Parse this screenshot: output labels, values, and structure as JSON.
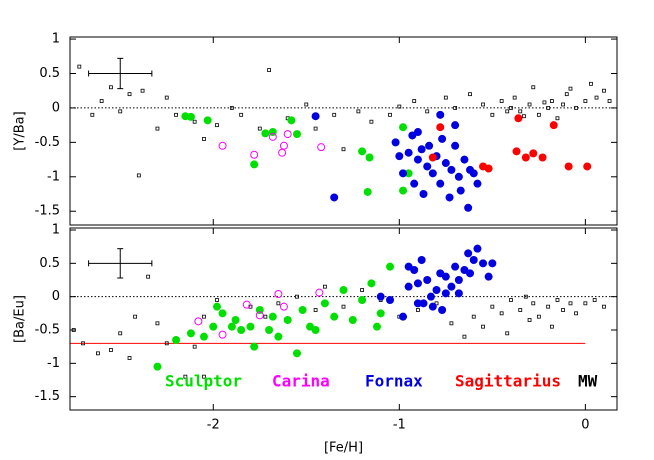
{
  "chart_data": [
    {
      "type": "scatter",
      "ylabel": "[Y/Ba]",
      "xlim": [
        -2.77,
        0.17
      ],
      "ylim": [
        -1.7,
        1.03
      ],
      "xticks": [
        -2,
        -1,
        0
      ],
      "yticks": [
        -1.5,
        -1,
        -0.5,
        0,
        0.5,
        1
      ],
      "reference_lines": [
        {
          "y": 0,
          "color": "#000000",
          "style": "dotted"
        }
      ],
      "error_bar": {
        "x": -2.5,
        "y": 0.5,
        "xerr": 0.17,
        "yerr": 0.22
      },
      "series": [
        {
          "color": "#000000",
          "marker": "square",
          "x": [
            -2.72,
            -2.6,
            -2.55,
            -2.5,
            -2.45,
            -2.38,
            -2.3,
            -2.25,
            -2.2,
            -2.1,
            -2.05,
            -1.98,
            -1.9,
            -1.85,
            -1.75,
            -1.7,
            -1.6,
            -1.5,
            -1.45,
            -1.35,
            -1.3,
            -1.22,
            -1.15,
            -1.05,
            -1.0,
            -0.92,
            -0.85,
            -0.75,
            -0.7,
            -0.62,
            -0.55,
            -0.5,
            -0.45,
            -0.4,
            -0.38,
            -0.35,
            -0.3,
            -0.28,
            -0.25,
            -0.2,
            -0.18,
            -0.15,
            -0.12,
            -0.1,
            -0.05,
            0.0,
            0.03,
            0.06,
            0.1,
            0.13,
            -2.65,
            -2.4,
            -0.42,
            -0.33,
            -0.22,
            -0.08
          ],
          "values": [
            0.6,
            0.1,
            0.3,
            -0.05,
            0.2,
            0.25,
            -0.3,
            0.15,
            -0.1,
            -0.2,
            -0.45,
            -0.25,
            0.0,
            -0.1,
            -0.3,
            0.55,
            -0.15,
            0.05,
            -0.3,
            -0.1,
            -0.6,
            -0.05,
            -0.2,
            -0.1,
            0.02,
            0.1,
            -0.05,
            0.15,
            0.0,
            0.2,
            0.05,
            -0.1,
            0.1,
            0.0,
            0.15,
            -0.05,
            0.05,
            0.3,
            -0.1,
            0.0,
            0.1,
            -0.15,
            0.05,
            0.2,
            0.0,
            0.1,
            0.35,
            0.15,
            0.25,
            0.1,
            -0.1,
            -0.98,
            -0.05,
            -0.12,
            0.08,
            0.28
          ]
        },
        {
          "color": "#00e000",
          "marker": "filled",
          "x": [
            -2.15,
            -2.12,
            -2.03,
            -1.78,
            -1.72,
            -1.68,
            -1.58,
            -1.55,
            -1.2,
            -1.17,
            -1.16,
            -0.98,
            -0.95,
            -0.98
          ],
          "values": [
            -0.12,
            -0.13,
            -0.18,
            -0.82,
            -0.37,
            -0.35,
            -0.18,
            -0.38,
            -0.63,
            -1.22,
            -0.72,
            -1.2,
            -0.95,
            -0.28
          ]
        },
        {
          "color": "#ff00ff",
          "marker": "open",
          "x": [
            -1.95,
            -1.78,
            -1.63,
            -1.62,
            -1.6,
            -1.42,
            -1.68
          ],
          "values": [
            -0.55,
            -0.68,
            -0.65,
            -0.55,
            -0.38,
            -0.57,
            -0.42
          ]
        },
        {
          "color": "#0000e0",
          "marker": "filled",
          "x": [
            -1.0,
            -0.98,
            -0.95,
            -0.93,
            -0.92,
            -0.9,
            -0.88,
            -0.87,
            -0.85,
            -0.84,
            -0.82,
            -0.8,
            -0.78,
            -0.77,
            -0.75,
            -0.73,
            -0.72,
            -0.7,
            -0.68,
            -0.67,
            -0.65,
            -0.63,
            -0.62,
            -0.6,
            -0.58,
            -0.78,
            -0.9,
            -1.02,
            -0.7,
            -1.35,
            -1.45
          ],
          "values": [
            -0.7,
            -0.95,
            -0.65,
            -0.4,
            -1.1,
            -0.75,
            -0.6,
            -1.25,
            -0.85,
            -0.55,
            -0.95,
            -0.7,
            -1.1,
            -0.45,
            -0.8,
            -1.3,
            -0.9,
            -0.55,
            -1.0,
            -1.2,
            -0.75,
            -1.45,
            -0.9,
            -0.95,
            -1.1,
            -0.1,
            -0.35,
            -0.5,
            -0.25,
            -1.3,
            -0.12
          ]
        },
        {
          "color": "#ff0000",
          "marker": "filled",
          "x": [
            -0.78,
            -0.82,
            -0.55,
            -0.52,
            -0.36,
            -0.37,
            -0.32,
            -0.28,
            -0.23,
            -0.17,
            -0.09,
            0.01
          ],
          "values": [
            -0.28,
            -0.72,
            -0.85,
            -0.88,
            -0.15,
            -0.63,
            -0.72,
            -0.66,
            -0.72,
            -0.25,
            -0.85,
            -0.85
          ]
        }
      ]
    },
    {
      "type": "scatter",
      "ylabel": "[Ba/Eu]",
      "xlabel": "[Fe/H]",
      "xlim": [
        -2.77,
        0.17
      ],
      "ylim": [
        -1.7,
        1.03
      ],
      "xticks": [
        -2,
        -1,
        0
      ],
      "yticks": [
        -1.5,
        -1,
        -0.5,
        0,
        0.5,
        1
      ],
      "reference_lines": [
        {
          "y": 0,
          "color": "#000000",
          "style": "dotted"
        },
        {
          "y": -0.7,
          "x_end": 0,
          "color": "#ff0000",
          "style": "solid"
        }
      ],
      "error_bar": {
        "x": -2.5,
        "y": 0.5,
        "xerr": 0.17,
        "yerr": 0.22
      },
      "legend": [
        {
          "name": "Sculptor",
          "color": "#00e000"
        },
        {
          "name": "Carina",
          "color": "#ff00ff"
        },
        {
          "name": "Fornax",
          "color": "#0000e0"
        },
        {
          "name": "Sagittarius",
          "color": "#ff0000"
        },
        {
          "name": "MW",
          "color": "#000000"
        }
      ],
      "series": [
        {
          "color": "#000000",
          "marker": "square",
          "x": [
            -2.75,
            -2.7,
            -2.62,
            -2.55,
            -2.5,
            -2.42,
            -2.35,
            -2.3,
            -2.25,
            -2.15,
            -2.1,
            -2.05,
            -1.98,
            -1.9,
            -1.8,
            -1.72,
            -1.65,
            -1.55,
            -1.45,
            -1.4,
            -1.3,
            -1.2,
            -1.1,
            -1.0,
            -0.9,
            -0.8,
            -0.72,
            -0.65,
            -0.6,
            -0.55,
            -0.5,
            -0.45,
            -0.4,
            -0.35,
            -0.32,
            -0.28,
            -0.25,
            -0.2,
            -0.15,
            -0.12,
            -0.08,
            -0.05,
            0.0,
            0.05,
            0.1,
            -0.42,
            -0.3,
            -0.18,
            -2.45,
            -2.05
          ],
          "values": [
            -0.5,
            -0.7,
            -0.85,
            -0.8,
            -0.55,
            -0.3,
            0.3,
            -0.4,
            -0.7,
            -1.2,
            -0.75,
            -0.3,
            -0.05,
            -0.45,
            -0.15,
            -0.3,
            -0.1,
            0.0,
            -0.2,
            0.15,
            -0.15,
            0.1,
            -0.05,
            -0.3,
            -0.2,
            -0.1,
            -0.4,
            -0.6,
            -0.3,
            -0.45,
            -0.15,
            -0.25,
            -0.05,
            -0.2,
            0.0,
            -0.1,
            -0.3,
            -0.15,
            -0.05,
            -0.2,
            -0.1,
            -0.25,
            -0.1,
            -0.05,
            -0.15,
            -0.55,
            -0.35,
            -0.45,
            -0.92,
            -1.2
          ]
        },
        {
          "color": "#00e000",
          "marker": "filled",
          "x": [
            -2.3,
            -2.2,
            -2.12,
            -2.05,
            -2.0,
            -1.98,
            -1.95,
            -1.9,
            -1.88,
            -1.85,
            -1.8,
            -1.78,
            -1.75,
            -1.7,
            -1.68,
            -1.65,
            -1.6,
            -1.55,
            -1.52,
            -1.48,
            -1.45,
            -1.4,
            -1.35,
            -1.3,
            -1.25,
            -1.2,
            -1.15,
            -1.12,
            -1.1,
            -1.05
          ],
          "values": [
            -1.05,
            -0.65,
            -0.55,
            -0.6,
            -0.45,
            -0.15,
            -0.25,
            -0.45,
            -0.35,
            -0.5,
            -0.45,
            -0.75,
            -0.2,
            -0.5,
            -0.3,
            -0.6,
            -0.35,
            -0.85,
            -0.2,
            -0.45,
            -0.5,
            -0.1,
            -0.3,
            0.1,
            -0.35,
            -0.05,
            0.2,
            -0.45,
            -0.25,
            0.45
          ]
        },
        {
          "color": "#ff00ff",
          "marker": "open",
          "x": [
            -2.08,
            -1.95,
            -1.82,
            -1.65,
            -1.62,
            -1.43,
            -1.75
          ],
          "values": [
            -0.37,
            -0.57,
            -0.12,
            0.04,
            -0.15,
            0.06,
            -0.28
          ]
        },
        {
          "color": "#0000e0",
          "marker": "filled",
          "x": [
            -1.05,
            -0.98,
            -0.95,
            -0.92,
            -0.9,
            -0.88,
            -0.85,
            -0.83,
            -0.8,
            -0.78,
            -0.77,
            -0.75,
            -0.72,
            -0.7,
            -0.68,
            -0.65,
            -0.63,
            -0.6,
            -0.58,
            -0.55,
            -0.52,
            -0.5,
            -0.9,
            -0.82,
            -0.75,
            -0.68,
            -0.62,
            -0.87,
            -0.95,
            -1.1
          ],
          "values": [
            -0.05,
            -0.3,
            0.15,
            0.4,
            -0.1,
            0.55,
            0.25,
            0.0,
            0.1,
            0.35,
            -0.2,
            0.3,
            0.15,
            0.45,
            0.05,
            0.4,
            0.65,
            0.55,
            0.72,
            0.5,
            0.3,
            0.5,
            0.2,
            -0.15,
            0.05,
            0.25,
            0.35,
            -0.1,
            0.45,
            0.0
          ]
        }
      ]
    }
  ]
}
